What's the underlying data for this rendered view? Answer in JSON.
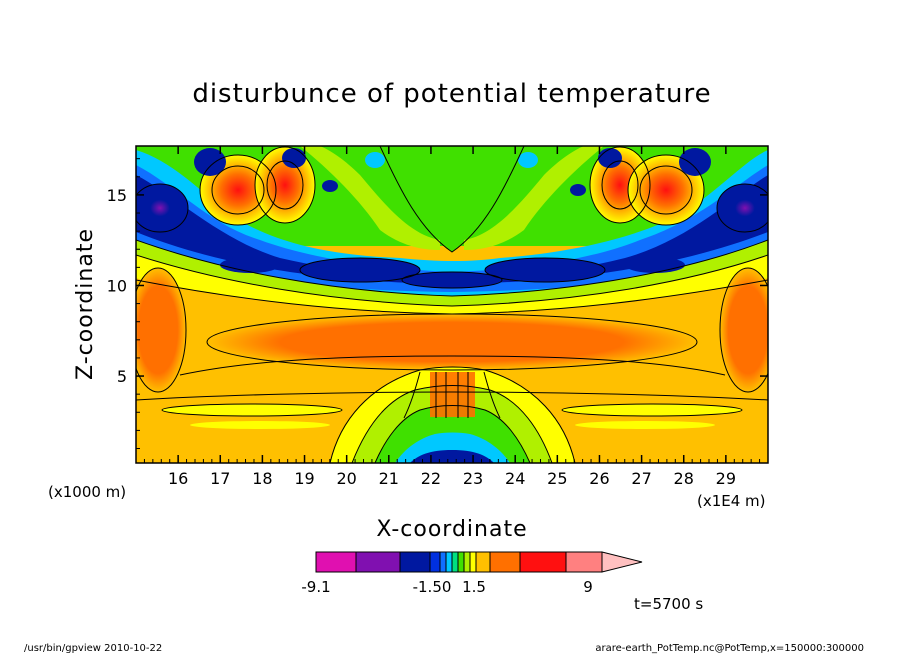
{
  "chart_data": {
    "type": "heatmap",
    "title": "disturbunce of potential temperature",
    "xlabel": "X-coordinate",
    "ylabel": "Z-coordinate",
    "x_unit_left": "(x1000 m)",
    "x_unit_right": "(x1E4 m)",
    "xticks": [
      "16",
      "17",
      "18",
      "19",
      "20",
      "21",
      "22",
      "23",
      "24",
      "25",
      "26",
      "27",
      "28",
      "29"
    ],
    "xtick_values": [
      16,
      17,
      18,
      19,
      20,
      21,
      22,
      23,
      24,
      25,
      26,
      27,
      28,
      29
    ],
    "xlim": [
      15,
      30
    ],
    "yticks": [
      "5",
      "10",
      "15"
    ],
    "ytick_values": [
      5,
      10,
      15
    ],
    "ylim": [
      0.2,
      17.7
    ],
    "colorbar": {
      "tick_labels": [
        "-9.1",
        "-1.50",
        "1.5",
        "9"
      ],
      "colors": [
        "#e010b0",
        "#8010b0",
        "#0018a0",
        "#0030e0",
        "#1070ff",
        "#00c8ff",
        "#00e080",
        "#40e000",
        "#b0f000",
        "#ffff00",
        "#ffc000",
        "#ff7000",
        "#ff1010",
        "#ff8080",
        "#ffc0c0"
      ]
    },
    "annotation": "t=5700 s"
  },
  "footer": {
    "left": "/usr/bin/gpview   2010-10-22",
    "right": "arare-earth_PotTemp.nc@PotTemp,x=150000:300000"
  }
}
